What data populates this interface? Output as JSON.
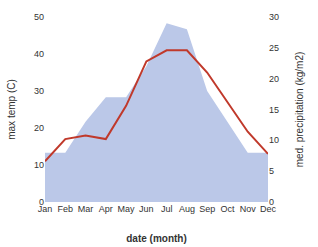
{
  "chart_data": {
    "type": "line",
    "xlabel": "date (month)",
    "ylabel": "max temp (C)",
    "y2label": "med. precipitation (kg/m2)",
    "categories": [
      "Jan",
      "Feb",
      "Mar",
      "Apr",
      "May",
      "Jun",
      "Jul",
      "Aug",
      "Sep",
      "Oct",
      "Nov",
      "Dec"
    ],
    "series": [
      {
        "type": "area",
        "axis": "y2",
        "color": "#bbc8e8",
        "values": [
          8,
          8,
          13,
          17,
          17,
          22,
          29,
          28,
          18,
          13,
          8,
          8
        ]
      },
      {
        "type": "line",
        "color": "#c0392b",
        "values": [
          11,
          17,
          18,
          17,
          26,
          38,
          41,
          41,
          35,
          27,
          19,
          13
        ]
      }
    ],
    "ylim": [
      0,
      50
    ],
    "yticks": [
      0,
      10,
      20,
      30,
      40,
      50
    ],
    "y2lim": [
      0,
      30
    ],
    "y2ticks": [
      0,
      5,
      10,
      15,
      20,
      25,
      30
    ],
    "grid": false
  }
}
